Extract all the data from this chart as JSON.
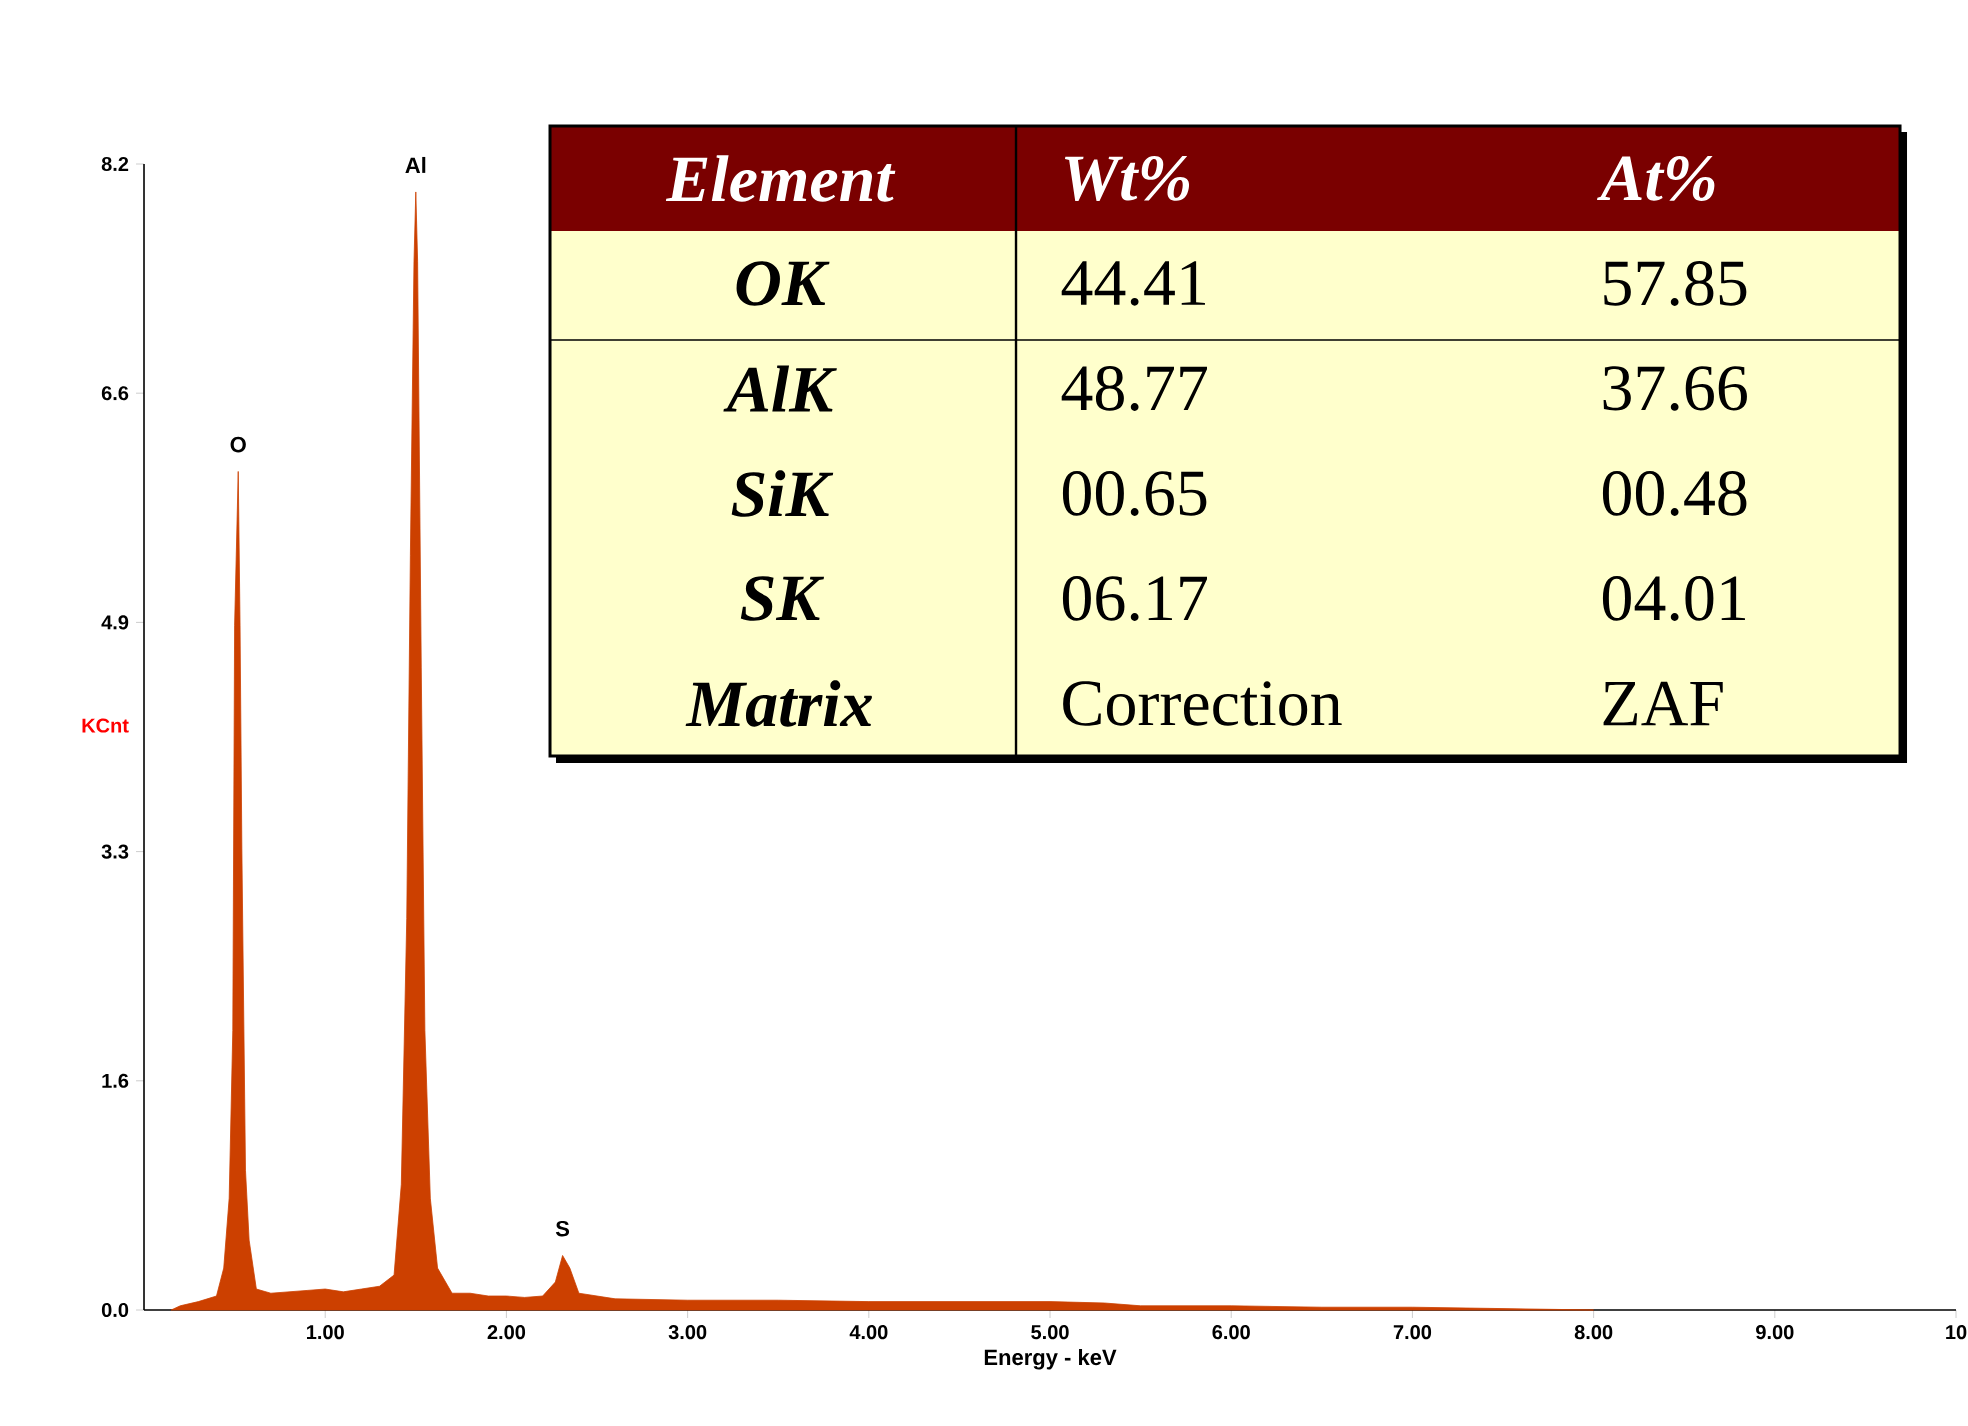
{
  "chart_data": {
    "type": "area",
    "xlabel": "Energy - keV",
    "ylabel": "KCnt",
    "xlim": [
      0,
      10
    ],
    "ylim": [
      0,
      8.2
    ],
    "xticks": [
      {
        "value": 1,
        "label": "1.00"
      },
      {
        "value": 2,
        "label": "2.00"
      },
      {
        "value": 3,
        "label": "3.00"
      },
      {
        "value": 4,
        "label": "4.00"
      },
      {
        "value": 5,
        "label": "5.00"
      },
      {
        "value": 6,
        "label": "6.00"
      },
      {
        "value": 7,
        "label": "7.00"
      },
      {
        "value": 8,
        "label": "8.00"
      },
      {
        "value": 9,
        "label": "9.00"
      },
      {
        "value": 10,
        "label": "10"
      }
    ],
    "yticks": [
      {
        "value": 0,
        "label": "0.0"
      },
      {
        "value": 1.64,
        "label": "1.6"
      },
      {
        "value": 3.28,
        "label": "3.3"
      },
      {
        "value": 4.92,
        "label": "4.9"
      },
      {
        "value": 6.56,
        "label": "6.6"
      },
      {
        "value": 8.2,
        "label": "8.2"
      }
    ],
    "x": [
      0.15,
      0.2,
      0.3,
      0.4,
      0.44,
      0.47,
      0.49,
      0.5,
      0.52,
      0.53,
      0.54,
      0.56,
      0.58,
      0.62,
      0.7,
      0.8,
      0.9,
      1.0,
      1.1,
      1.2,
      1.3,
      1.38,
      1.42,
      1.45,
      1.47,
      1.49,
      1.5,
      1.51,
      1.53,
      1.55,
      1.58,
      1.62,
      1.7,
      1.8,
      1.9,
      2.0,
      2.1,
      2.2,
      2.27,
      2.31,
      2.35,
      2.4,
      2.6,
      3.0,
      3.5,
      4.0,
      4.5,
      5.0,
      5.3,
      5.5,
      6.0,
      6.5,
      7.0,
      7.5,
      8.0
    ],
    "series": [
      {
        "color": "#cc4000",
        "values": [
          0.0,
          0.03,
          0.06,
          0.1,
          0.3,
          0.8,
          2.0,
          4.9,
          6.0,
          4.9,
          3.3,
          1.0,
          0.5,
          0.15,
          0.12,
          0.13,
          0.14,
          0.15,
          0.13,
          0.15,
          0.17,
          0.25,
          0.9,
          2.8,
          5.4,
          7.5,
          8.0,
          7.5,
          4.6,
          2.0,
          0.8,
          0.3,
          0.12,
          0.12,
          0.1,
          0.1,
          0.09,
          0.1,
          0.2,
          0.39,
          0.3,
          0.12,
          0.08,
          0.07,
          0.07,
          0.06,
          0.06,
          0.06,
          0.05,
          0.03,
          0.03,
          0.02,
          0.02,
          0.01,
          0.0
        ]
      }
    ],
    "annotations": [
      {
        "text": "O",
        "x": 0.52,
        "y": 6.0
      },
      {
        "text": "Al",
        "x": 1.5,
        "y": 8.0
      },
      {
        "text": "S",
        "x": 2.31,
        "y": 0.39
      },
      "Element",
      "Wt%",
      "At%",
      "OK",
      "44.41",
      "57.85",
      "AlK",
      "48.77",
      "37.66",
      "SiK",
      "00.65",
      "00.48",
      "SK",
      "06.17",
      "04.01",
      "Matrix",
      "Correction",
      "ZAF"
    ]
  }
}
